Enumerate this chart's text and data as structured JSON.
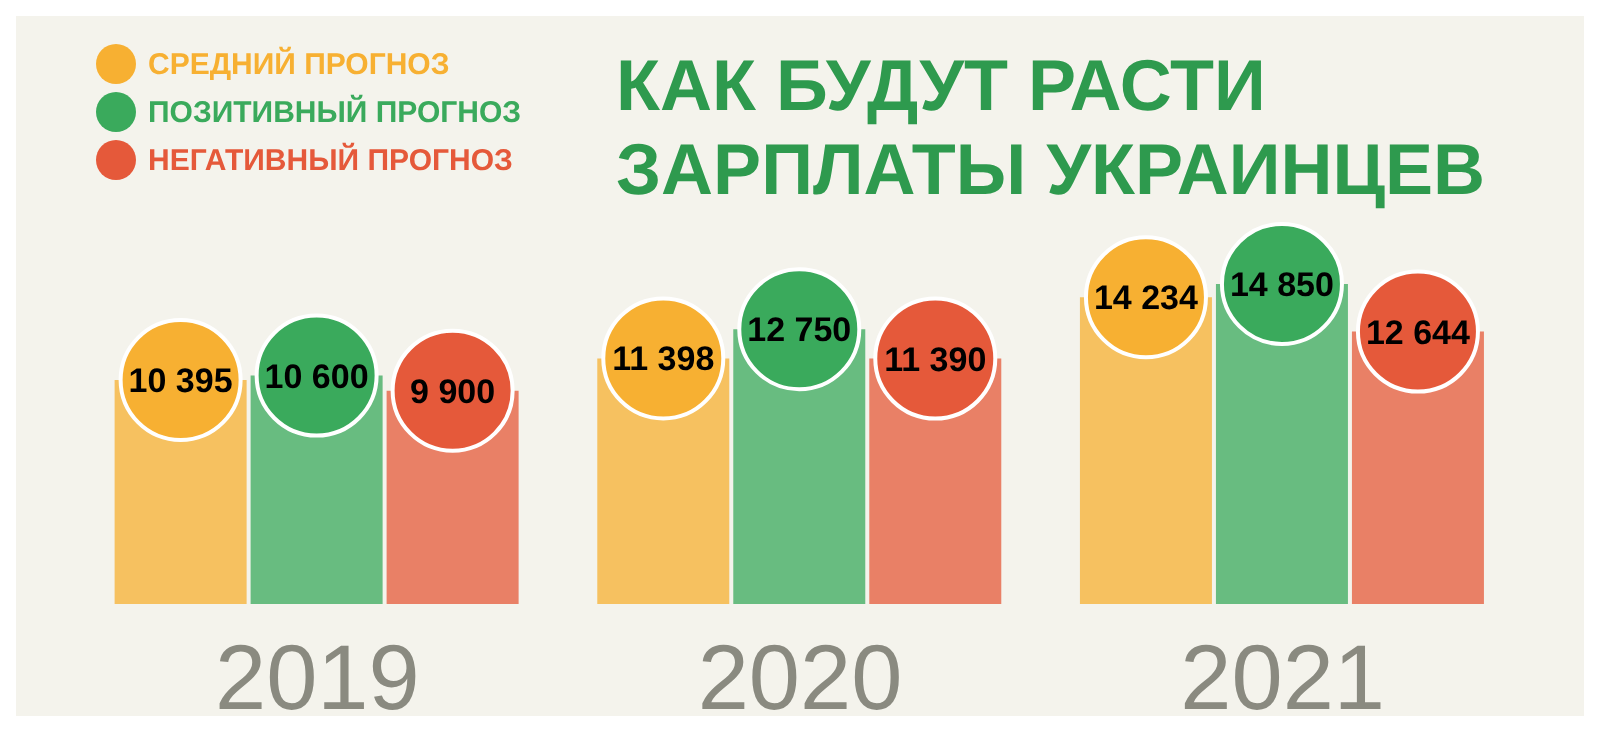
{
  "chart_data": {
    "type": "bar",
    "title": "КАК БУДУТ РАСТИ ЗАРПЛАТЫ УКРАИНЦЕВ",
    "categories": [
      "2019",
      "2020",
      "2021"
    ],
    "series": [
      {
        "name": "СРЕДНИЙ ПРОГНОЗ",
        "color": "#f7b032",
        "values": [
          10395,
          11398,
          14234
        ],
        "value_labels": [
          "10 395",
          "11 398",
          "14 234"
        ]
      },
      {
        "name": "ПОЗИТИВНЫЙ ПРОГНОЗ",
        "color": "#3aaa5c",
        "values": [
          10600,
          12750,
          14850
        ],
        "value_labels": [
          "10 600",
          "12 750",
          "14 850"
        ]
      },
      {
        "name": "НЕГАТИВНЫЙ ПРОГНОЗ",
        "color": "#e5593a",
        "values": [
          9900,
          11390,
          12644
        ],
        "value_labels": [
          "9 900",
          "11 390",
          "12 644"
        ]
      }
    ],
    "legend": "top left",
    "grid": false
  }
}
